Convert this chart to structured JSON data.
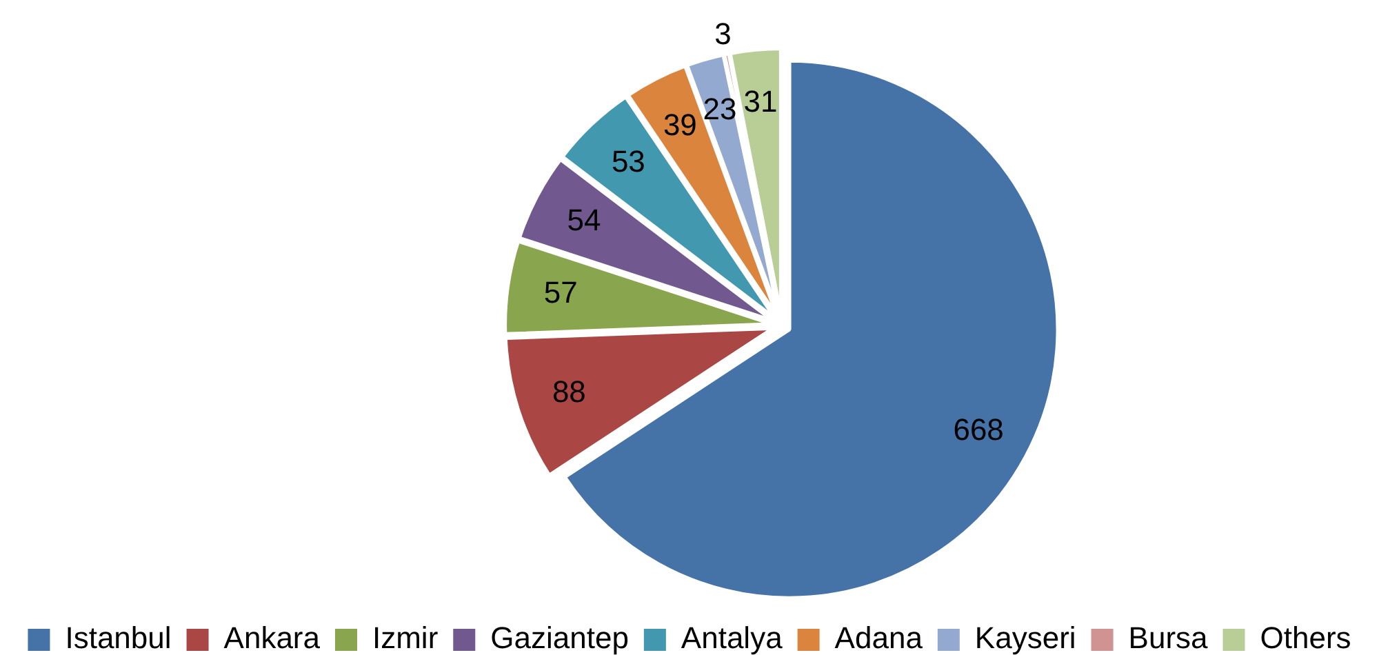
{
  "chart_data": {
    "type": "pie",
    "categories": [
      "Istanbul",
      "Ankara",
      "Izmir",
      "Gaziantep",
      "Antalya",
      "Adana",
      "Kayseri",
      "Bursa",
      "Others"
    ],
    "values": [
      668,
      88,
      57,
      54,
      53,
      39,
      23,
      3,
      31
    ],
    "colors": [
      "#4572a7",
      "#aa4643",
      "#89a54e",
      "#71588f",
      "#4198af",
      "#db843d",
      "#93a9cf",
      "#d19392",
      "#b9cd96"
    ],
    "data_labels": true,
    "legend": "bottom"
  }
}
